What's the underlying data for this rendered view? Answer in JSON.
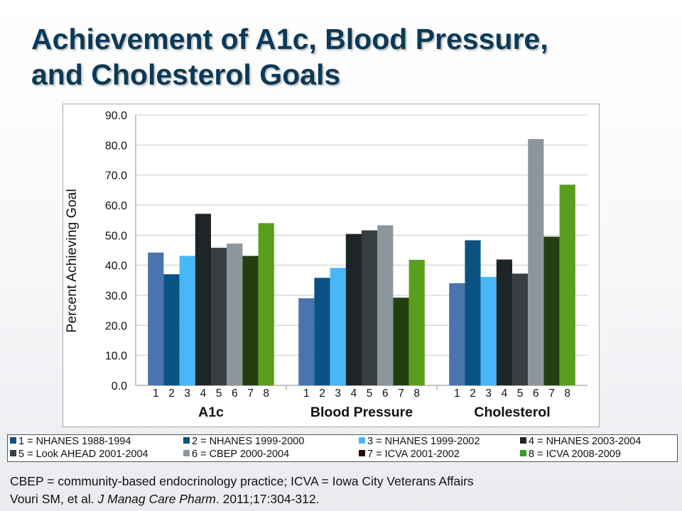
{
  "slide": {
    "title_lines": [
      "Achievement of A1c, Blood Pressure,",
      "and Cholesterol Goals"
    ]
  },
  "chart_data": {
    "type": "bar",
    "title": "",
    "ylabel": "Percent Achieving Goal",
    "xlabel": "",
    "ylim": [
      0,
      90
    ],
    "yticks": [
      "0.0",
      "10.0",
      "20.0",
      "30.0",
      "40.0",
      "50.0",
      "60.0",
      "70.0",
      "80.0",
      "90.0"
    ],
    "grid": true,
    "groups": [
      "A1c",
      "Blood Pressure",
      "Cholesterol"
    ],
    "bar_numbers": [
      "1",
      "2",
      "3",
      "4",
      "5",
      "6",
      "7",
      "8"
    ],
    "series": [
      {
        "name": "1 = NHANES 1988-1994",
        "color": "#4a74ad",
        "values": [
          44.2,
          29.0,
          34.0
        ]
      },
      {
        "name": "2 = NHANES 1999-2000",
        "color": "#0a5282",
        "values": [
          37.0,
          35.8,
          48.3
        ]
      },
      {
        "name": "3 = NHANES 1999-2002",
        "color": "#47b7f5",
        "values": [
          43.1,
          39.1,
          36.1
        ]
      },
      {
        "name": "4 = NHANES 2003-2004",
        "color": "#1e2528",
        "values": [
          57.1,
          50.4,
          41.9
        ]
      },
      {
        "name": "5 = Look AHEAD 2001-2004",
        "color": "#383e42",
        "values": [
          45.8,
          51.6,
          37.2
        ]
      },
      {
        "name": "6 = CBEP 2000-2004",
        "color": "#8c979d",
        "values": [
          47.2,
          53.3,
          82.0
        ]
      },
      {
        "name": "7 = ICVA 2001-2002",
        "color": "#233f0f",
        "values": [
          43.1,
          29.2,
          49.5
        ]
      },
      {
        "name": "8 = ICVA 2008-2009",
        "color": "#5a9e1d",
        "values": [
          54.0,
          41.8,
          66.8
        ]
      }
    ],
    "legend_placement": "bottom",
    "legend_swatch_colors": [
      "#0a5282",
      "#0a5282",
      "#47b7f5",
      "#1e2528",
      "#383e42",
      "#8c979d",
      "#2a0a0a",
      "#3a9a2a"
    ]
  },
  "footnotes": {
    "line1": "CBEP = community-based endocrinology practice; ICVA = Iowa City Veterans Affairs",
    "line2_before": "Vouri SM, et al. ",
    "line2_journal": "J Manag Care Pharm",
    "line2_after": ". 2011;17:304-312."
  }
}
